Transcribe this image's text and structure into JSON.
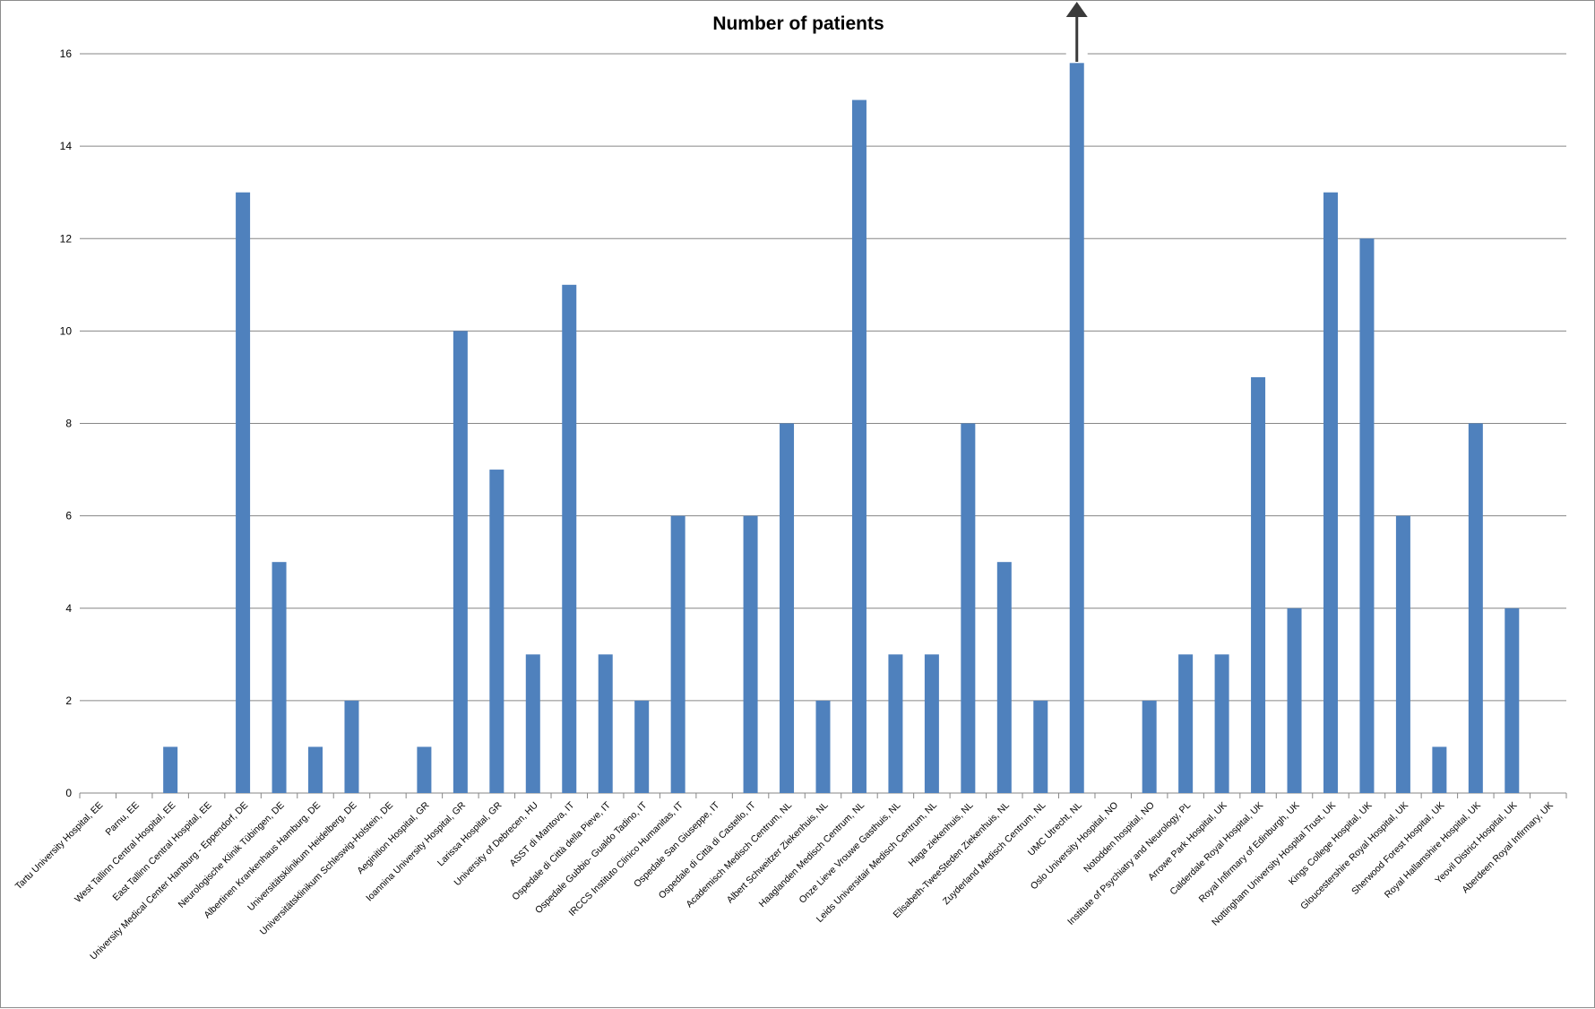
{
  "chart_data": {
    "type": "bar",
    "title": "Number of patients",
    "xlabel": "",
    "ylabel": "",
    "ylim": [
      0,
      16
    ],
    "ytick_step": 2,
    "yticks": [
      "0",
      "2",
      "4",
      "6",
      "8",
      "10",
      "12",
      "14",
      "16"
    ],
    "grid": true,
    "legend": "none",
    "bar_color": "#4f81bd",
    "grid_color": "#868686",
    "clipped_bar_index": 27,
    "clipped_bar_note": "arrow indicating value exceeds axis maximum",
    "categories": [
      "Tartu University Hospital, EE",
      "Parnu, EE",
      "West Tallinn Central Hospital, EE",
      "East Tallinn Central Hospital, EE",
      "University Medical Center Hamburg - Eppendorf, DE",
      "Neurologische Klinik Tübingen, DE",
      "Albertinen Krankenhaus Hamburg, DE",
      "Universitätsklinikum Heidelberg, DE",
      "Universitätsklinikum Schleswig-Holstein, DE",
      "Aeginition Hospital, GR",
      "Ioannina University Hospital, GR",
      "Larissa Hospital, GR",
      "University of Debrecen, HU",
      "ASST di Mantova, IT",
      "Ospedale di Città della Pieve, IT",
      "Ospedale Gubbio- Gualdo Tadino, IT",
      "IRCCS Instituto Clinico Humanitas, IT",
      "Ospedale San Giuseppe, IT",
      "Ospedale di Città di Castello, IT",
      "Academisch Medisch Centrum, NL",
      "Albert Schweitzer Ziekenhuis, NL",
      "Haaglanden Medisch Centrum, NL",
      "Onze Lieve Vrouwe Gasthuis, NL",
      "Leids Universitair Medisch Centrum, NL",
      "Haga ziekenhuis, NL",
      "Elisabeth-TweeSteden Ziekenhuis, NL",
      "Zuyderland Medisch Centrum, NL",
      "UMC Utrecht, NL",
      "Oslo University Hospital, NO",
      "Notodden hospital, NO",
      "Institute of Psychiatry and Neurology, PL",
      "Arrowe Park Hospital, UK",
      "Calderdale Royal Hospital, UK",
      "Royal Infirmary of Edinburgh, UK",
      "Nottingham University Hospital Trust, UK",
      "Kings College Hospital, UK",
      "Gloucestershire Royal Hospital, UK",
      "Sherwood Forest Hospital, UK",
      "Royal Hallamshire Hospital, UK",
      "Yeovil District Hospital, UK",
      "Aberdeen Royal Infirmary, UK"
    ],
    "values": [
      0,
      0,
      1,
      0,
      13,
      5,
      1,
      2,
      0,
      1,
      10,
      7,
      3,
      11,
      3,
      2,
      6,
      0,
      6,
      8,
      2,
      15,
      3,
      3,
      8,
      5,
      2,
      15.8,
      0,
      2,
      3,
      3,
      9,
      4,
      13,
      12,
      6,
      1,
      8,
      4,
      0
    ]
  }
}
